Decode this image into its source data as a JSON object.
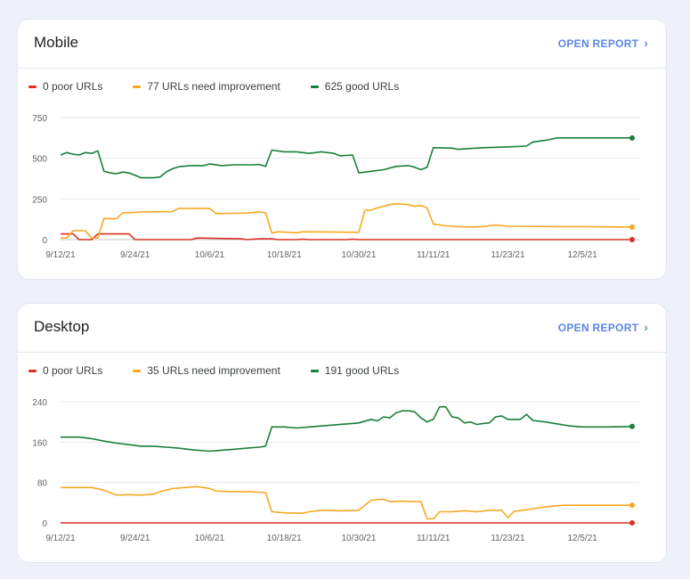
{
  "colors": {
    "poor": "#d93025",
    "improvement": "#f7a823",
    "good": "#188038",
    "link": "#5b86e5",
    "grid": "#e8eaed"
  },
  "mobile": {
    "title": "Mobile",
    "open_report_label": "OPEN REPORT",
    "legend": {
      "poor": "0 poor URLs",
      "improvement": "77 URLs need improvement",
      "good": "625 good URLs"
    },
    "chart_data": {
      "type": "line",
      "ylim": [
        0,
        750
      ],
      "yticks": [
        0,
        250,
        500,
        750
      ],
      "xlim": [
        "9/12/21",
        "12/13/21"
      ],
      "xticks": [
        "9/12/21",
        "9/24/21",
        "10/6/21",
        "10/18/21",
        "10/30/21",
        "11/11/21",
        "11/23/21",
        "12/5/21"
      ],
      "series": [
        {
          "name": "poor",
          "color": "#d93025",
          "points": [
            [
              "9/12/21",
              35
            ],
            [
              "9/14/21",
              35
            ],
            [
              "9/15/21",
              0
            ],
            [
              "9/17/21",
              0
            ],
            [
              "9/18/21",
              35
            ],
            [
              "9/23/21",
              35
            ],
            [
              "9/24/21",
              0
            ],
            [
              "10/3/21",
              0
            ],
            [
              "10/4/21",
              10
            ],
            [
              "10/11/21",
              5
            ],
            [
              "10/12/21",
              0
            ],
            [
              "10/14/21",
              5
            ],
            [
              "10/16/21",
              5
            ],
            [
              "10/17/21",
              0
            ],
            [
              "10/20/21",
              0
            ],
            [
              "10/21/21",
              3
            ],
            [
              "10/22/21",
              0
            ],
            [
              "10/28/21",
              0
            ],
            [
              "10/29/21",
              3
            ],
            [
              "10/30/21",
              0
            ],
            [
              "12/13/21",
              0
            ]
          ]
        },
        {
          "name": "improvement",
          "color": "#f7a823",
          "points": [
            [
              "9/12/21",
              10
            ],
            [
              "9/13/21",
              10
            ],
            [
              "9/14/21",
              55
            ],
            [
              "9/16/21",
              55
            ],
            [
              "9/17/21",
              10
            ],
            [
              "9/18/21",
              10
            ],
            [
              "9/19/21",
              130
            ],
            [
              "9/21/21",
              128
            ],
            [
              "9/22/21",
              165
            ],
            [
              "9/24/21",
              167
            ],
            [
              "9/25/21",
              170
            ],
            [
              "9/30/21",
              172
            ],
            [
              "10/1/21",
              192
            ],
            [
              "10/6/21",
              192
            ],
            [
              "10/7/21",
              160
            ],
            [
              "10/12/21",
              163
            ],
            [
              "10/14/21",
              170
            ],
            [
              "10/15/21",
              165
            ],
            [
              "10/16/21",
              40
            ],
            [
              "10/17/21",
              48
            ],
            [
              "10/20/21",
              42
            ],
            [
              "10/21/21",
              48
            ],
            [
              "10/30/21",
              45
            ],
            [
              "10/31/21",
              180
            ],
            [
              "11/1/21",
              182
            ],
            [
              "11/2/21",
              195
            ],
            [
              "11/4/21",
              215
            ],
            [
              "11/5/21",
              220
            ],
            [
              "11/7/21",
              215
            ],
            [
              "11/8/21",
              205
            ],
            [
              "11/9/21",
              210
            ],
            [
              "11/10/21",
              195
            ],
            [
              "11/11/21",
              95
            ],
            [
              "11/13/21",
              85
            ],
            [
              "11/15/21",
              80
            ],
            [
              "11/17/21",
              78
            ],
            [
              "11/19/21",
              80
            ],
            [
              "11/21/21",
              90
            ],
            [
              "11/23/21",
              82
            ],
            [
              "12/1/21",
              80
            ],
            [
              "12/5/21",
              80
            ],
            [
              "12/13/21",
              77
            ]
          ]
        },
        {
          "name": "good",
          "color": "#188038",
          "points": [
            [
              "9/12/21",
              520
            ],
            [
              "9/13/21",
              535
            ],
            [
              "9/14/21",
              525
            ],
            [
              "9/15/21",
              520
            ],
            [
              "9/16/21",
              535
            ],
            [
              "9/17/21",
              530
            ],
            [
              "9/18/21",
              545
            ],
            [
              "9/19/21",
              420
            ],
            [
              "9/20/21",
              410
            ],
            [
              "9/21/21",
              405
            ],
            [
              "9/22/21",
              415
            ],
            [
              "9/23/21",
              410
            ],
            [
              "9/24/21",
              395
            ],
            [
              "9/25/21",
              380
            ],
            [
              "9/27/21",
              380
            ],
            [
              "9/28/21",
              385
            ],
            [
              "9/29/21",
              415
            ],
            [
              "9/30/21",
              435
            ],
            [
              "10/1/21",
              448
            ],
            [
              "10/3/21",
              455
            ],
            [
              "10/5/21",
              455
            ],
            [
              "10/6/21",
              465
            ],
            [
              "10/8/21",
              455
            ],
            [
              "10/10/21",
              460
            ],
            [
              "10/13/21",
              460
            ],
            [
              "10/14/21",
              462
            ],
            [
              "10/15/21",
              450
            ],
            [
              "10/16/21",
              550
            ],
            [
              "10/18/21",
              540
            ],
            [
              "10/20/21",
              540
            ],
            [
              "10/22/21",
              530
            ],
            [
              "10/24/21",
              540
            ],
            [
              "10/26/21",
              530
            ],
            [
              "10/27/21",
              515
            ],
            [
              "10/29/21",
              520
            ],
            [
              "10/30/21",
              410
            ],
            [
              "11/1/21",
              420
            ],
            [
              "11/3/21",
              430
            ],
            [
              "11/5/21",
              450
            ],
            [
              "11/7/21",
              455
            ],
            [
              "11/8/21",
              445
            ],
            [
              "11/9/21",
              430
            ],
            [
              "11/10/21",
              445
            ],
            [
              "11/11/21",
              565
            ],
            [
              "11/14/21",
              562
            ],
            [
              "11/15/21",
              555
            ],
            [
              "11/19/21",
              565
            ],
            [
              "11/23/21",
              570
            ],
            [
              "11/26/21",
              575
            ],
            [
              "11/27/21",
              600
            ],
            [
              "11/29/21",
              610
            ],
            [
              "12/1/21",
              625
            ],
            [
              "12/5/21",
              625
            ],
            [
              "12/10/21",
              625
            ],
            [
              "12/13/21",
              625
            ]
          ]
        }
      ]
    }
  },
  "desktop": {
    "title": "Desktop",
    "open_report_label": "OPEN REPORT",
    "legend": {
      "poor": "0 poor URLs",
      "improvement": "35 URLs need improvement",
      "good": "191 good URLs"
    },
    "chart_data": {
      "type": "line",
      "ylim": [
        0,
        240
      ],
      "yticks": [
        0,
        80,
        160,
        240
      ],
      "xlim": [
        "9/12/21",
        "12/13/21"
      ],
      "xticks": [
        "9/12/21",
        "9/24/21",
        "10/6/21",
        "10/18/21",
        "10/30/21",
        "11/11/21",
        "11/23/21",
        "12/5/21"
      ],
      "series": [
        {
          "name": "poor",
          "color": "#d93025",
          "points": [
            [
              "9/12/21",
              0
            ],
            [
              "12/13/21",
              0
            ]
          ]
        },
        {
          "name": "improvement",
          "color": "#f7a823",
          "points": [
            [
              "9/12/21",
              70
            ],
            [
              "9/17/21",
              70
            ],
            [
              "9/19/21",
              65
            ],
            [
              "9/21/21",
              55
            ],
            [
              "9/23/21",
              56
            ],
            [
              "9/25/21",
              55
            ],
            [
              "9/27/21",
              57
            ],
            [
              "9/28/21",
              62
            ],
            [
              "9/30/21",
              68
            ],
            [
              "10/2/21",
              70
            ],
            [
              "10/4/21",
              72
            ],
            [
              "10/6/21",
              68
            ],
            [
              "10/7/21",
              63
            ],
            [
              "10/10/21",
              62
            ],
            [
              "10/12/21",
              62
            ],
            [
              "10/15/21",
              60
            ],
            [
              "10/16/21",
              22
            ],
            [
              "10/18/21",
              20
            ],
            [
              "10/21/21",
              19
            ],
            [
              "10/22/21",
              22
            ],
            [
              "10/24/21",
              25
            ],
            [
              "10/27/21",
              24
            ],
            [
              "10/30/21",
              25
            ],
            [
              "11/1/21",
              45
            ],
            [
              "11/3/21",
              47
            ],
            [
              "11/4/21",
              42
            ],
            [
              "11/6/21",
              43
            ],
            [
              "11/8/21",
              42
            ],
            [
              "11/9/21",
              42
            ],
            [
              "11/10/21",
              8
            ],
            [
              "11/11/21",
              8
            ],
            [
              "11/12/21",
              22
            ],
            [
              "11/14/21",
              22
            ],
            [
              "11/16/21",
              24
            ],
            [
              "11/18/21",
              22
            ],
            [
              "11/20/21",
              25
            ],
            [
              "11/22/21",
              25
            ],
            [
              "11/23/21",
              10
            ],
            [
              "11/24/21",
              23
            ],
            [
              "11/26/21",
              26
            ],
            [
              "11/28/21",
              30
            ],
            [
              "11/30/21",
              33
            ],
            [
              "12/2/21",
              35
            ],
            [
              "12/13/21",
              35
            ]
          ]
        },
        {
          "name": "good",
          "color": "#188038",
          "points": [
            [
              "9/12/21",
              170
            ],
            [
              "9/15/21",
              170
            ],
            [
              "9/17/21",
              167
            ],
            [
              "9/19/21",
              162
            ],
            [
              "9/21/21",
              158
            ],
            [
              "9/23/21",
              155
            ],
            [
              "9/25/21",
              152
            ],
            [
              "9/27/21",
              152
            ],
            [
              "9/29/21",
              150
            ],
            [
              "10/1/21",
              148
            ],
            [
              "10/3/21",
              145
            ],
            [
              "10/5/21",
              143
            ],
            [
              "10/6/21",
              142
            ],
            [
              "10/8/21",
              144
            ],
            [
              "10/10/21",
              146
            ],
            [
              "10/12/21",
              148
            ],
            [
              "10/14/21",
              150
            ],
            [
              "10/15/21",
              152
            ],
            [
              "10/16/21",
              190
            ],
            [
              "10/18/21",
              190
            ],
            [
              "10/20/21",
              188
            ],
            [
              "10/22/21",
              190
            ],
            [
              "10/24/21",
              192
            ],
            [
              "10/26/21",
              194
            ],
            [
              "10/28/21",
              196
            ],
            [
              "10/30/21",
              198
            ],
            [
              "11/1/21",
              205
            ],
            [
              "11/2/21",
              202
            ],
            [
              "11/3/21",
              210
            ],
            [
              "11/4/21",
              208
            ],
            [
              "11/5/21",
              218
            ],
            [
              "11/6/21",
              222
            ],
            [
              "11/7/21",
              222
            ],
            [
              "11/8/21",
              220
            ],
            [
              "11/9/21",
              208
            ],
            [
              "11/10/21",
              200
            ],
            [
              "11/11/21",
              205
            ],
            [
              "11/12/21",
              230
            ],
            [
              "11/13/21",
              230
            ],
            [
              "11/14/21",
              210
            ],
            [
              "11/15/21",
              208
            ],
            [
              "11/16/21",
              198
            ],
            [
              "11/17/21",
              200
            ],
            [
              "11/18/21",
              195
            ],
            [
              "11/19/21",
              197
            ],
            [
              "11/20/21",
              198
            ],
            [
              "11/21/21",
              210
            ],
            [
              "11/22/21",
              212
            ],
            [
              "11/23/21",
              205
            ],
            [
              "11/25/21",
              205
            ],
            [
              "11/26/21",
              215
            ],
            [
              "11/27/21",
              203
            ],
            [
              "11/29/21",
              200
            ],
            [
              "12/1/21",
              196
            ],
            [
              "12/3/21",
              192
            ],
            [
              "12/5/21",
              190
            ],
            [
              "12/9/21",
              190
            ],
            [
              "12/13/21",
              191
            ]
          ]
        }
      ]
    }
  }
}
